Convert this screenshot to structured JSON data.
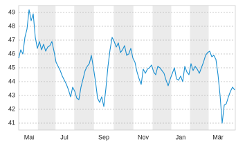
{
  "chart_data": {
    "type": "line",
    "categories": [
      null,
      null,
      null,
      null,
      null,
      "Mai",
      null,
      null,
      null,
      null,
      null,
      null,
      null,
      null,
      null,
      null,
      null,
      null,
      null,
      null,
      null,
      null,
      "Jul",
      null,
      null,
      null,
      null,
      null,
      null,
      null,
      null,
      null,
      null,
      null,
      null,
      null,
      null,
      null,
      null,
      null,
      null,
      "Sep",
      null,
      null,
      null,
      null,
      null,
      null,
      null,
      null,
      null,
      null,
      null,
      null,
      null,
      null,
      null,
      null,
      null,
      null,
      "Nov",
      null,
      null,
      null,
      null,
      null,
      null,
      null,
      null,
      null,
      null,
      null,
      null,
      null,
      null,
      null,
      null,
      null,
      "Jan",
      null,
      null,
      null,
      null,
      null,
      null,
      null,
      null,
      null,
      null,
      null,
      null,
      null,
      null,
      null,
      null,
      null,
      "Mär",
      null,
      null,
      null,
      null,
      null,
      null,
      null,
      null
    ],
    "values": [
      45.7,
      46.3,
      46.0,
      47.2,
      47.8,
      49.2,
      48.4,
      48.9,
      47.2,
      46.4,
      46.9,
      46.3,
      46.7,
      46.2,
      46.5,
      46.6,
      46.9,
      46.2,
      45.4,
      45.1,
      44.8,
      44.4,
      44.1,
      43.8,
      43.4,
      42.9,
      43.6,
      43.3,
      42.8,
      42.7,
      43.6,
      44.2,
      44.8,
      45.1,
      45.3,
      45.9,
      45.0,
      44.0,
      42.8,
      42.5,
      42.9,
      42.2,
      43.5,
      45.1,
      46.3,
      47.2,
      46.9,
      46.5,
      46.8,
      46.1,
      46.3,
      46.6,
      45.9,
      46.0,
      46.4,
      45.7,
      45.4,
      44.7,
      44.2,
      43.8,
      44.9,
      44.6,
      44.9,
      45.0,
      45.2,
      44.7,
      44.5,
      45.1,
      45.0,
      44.8,
      44.6,
      44.1,
      43.7,
      44.2,
      44.6,
      45.0,
      44.2,
      44.1,
      44.4,
      44.0,
      45.1,
      44.7,
      44.5,
      45.3,
      44.8,
      45.1,
      44.9,
      44.6,
      45.0,
      45.4,
      45.9,
      46.1,
      46.2,
      45.8,
      45.9,
      45.6,
      44.5,
      43.0,
      41.0,
      42.3,
      42.4,
      42.9,
      43.3,
      43.6,
      43.4
    ],
    "color": "#1a8fd1",
    "ylim": [
      40.5,
      49.5
    ],
    "yticks": [
      41,
      42,
      43,
      44,
      45,
      46,
      47,
      48,
      49
    ],
    "grid": true
  }
}
